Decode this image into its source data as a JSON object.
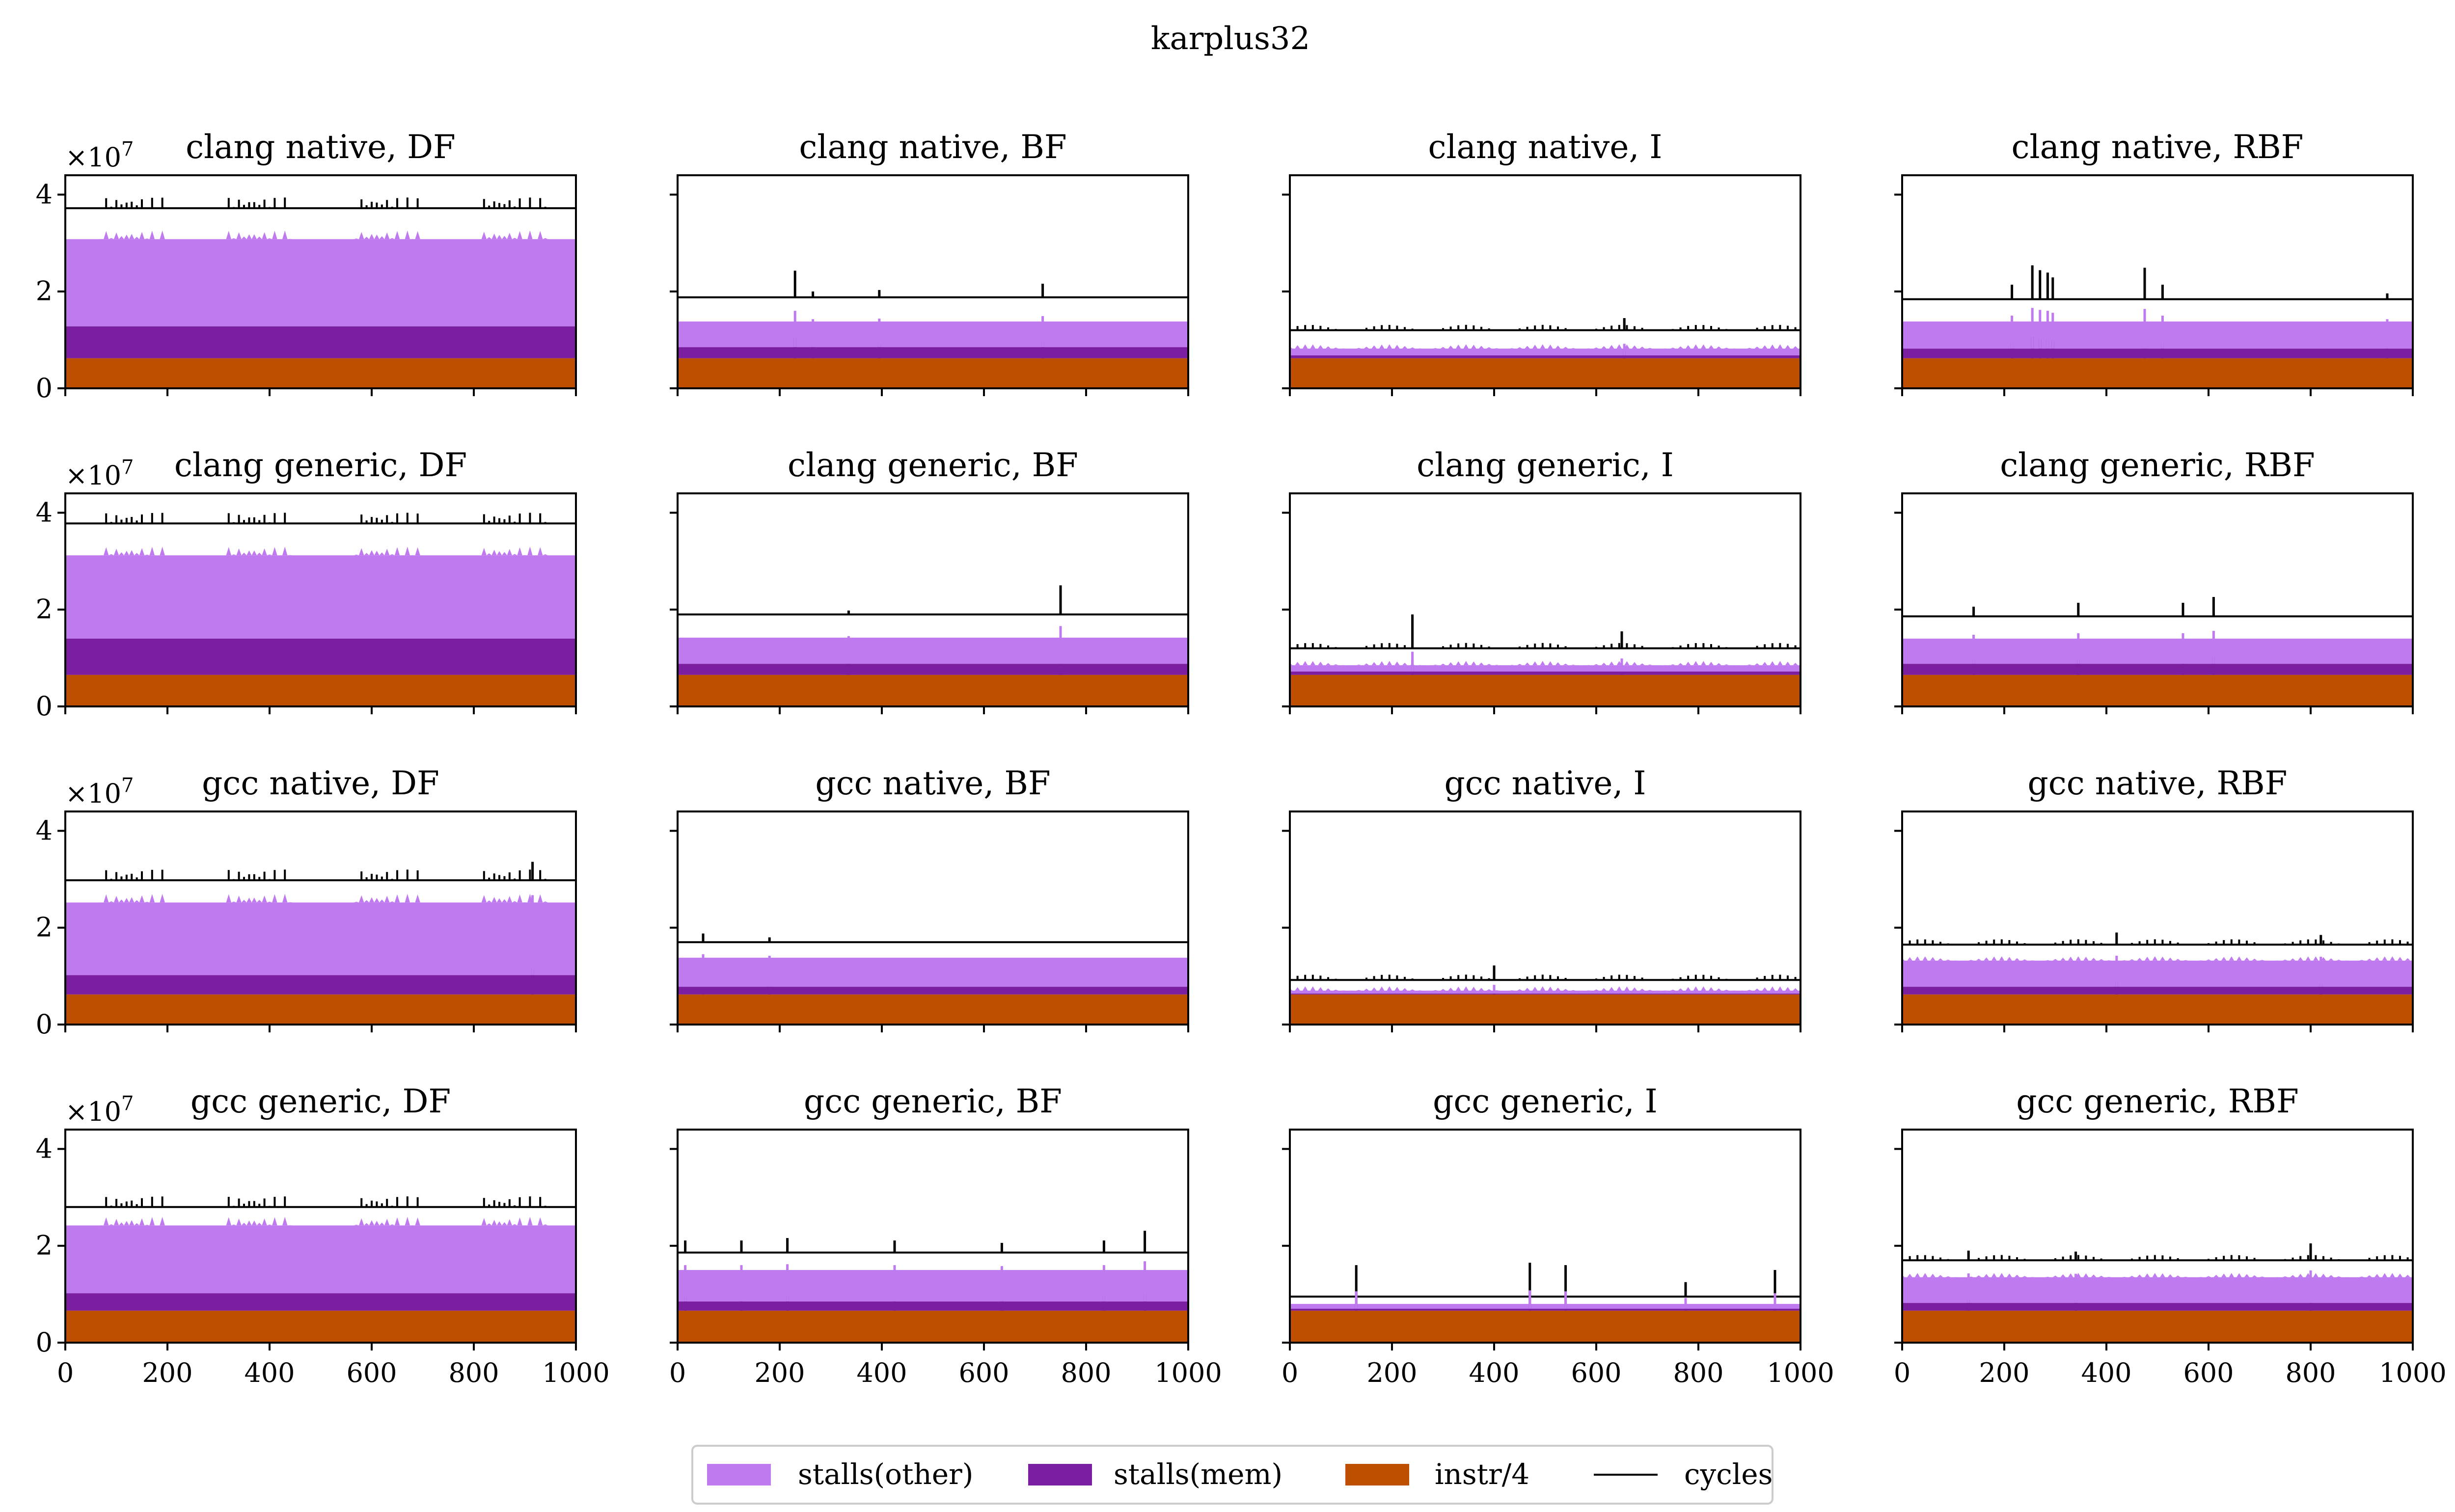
{
  "colors": {
    "stalls_other": "#bf7af0",
    "stalls_mem": "#7b1ea0",
    "instr4": "#bf4f00",
    "cycles": "#000000",
    "frame": "#000000"
  },
  "chart_data": {
    "type": "area",
    "suptitle": "karplus32",
    "x_ticks": [
      "0",
      "200",
      "400",
      "600",
      "800",
      "1000"
    ],
    "y_ticks": [
      "0",
      "2",
      "4"
    ],
    "y_multiplier": "×10",
    "y_exponent": "7",
    "xlim": [
      0,
      1000
    ],
    "ylim": [
      0,
      4.4
    ],
    "y_unit": 10000000,
    "legend": [
      {
        "key": "stalls_other",
        "label": "stalls(other)",
        "kind": "patch"
      },
      {
        "key": "stalls_mem",
        "label": "stalls(mem)",
        "kind": "patch"
      },
      {
        "key": "instr4",
        "label": "instr/4",
        "kind": "patch"
      },
      {
        "key": "cycles",
        "label": "cycles",
        "kind": "line"
      }
    ],
    "panels": [
      {
        "title": "clang native, DF",
        "instr4": 0.62,
        "mem_top": 1.28,
        "other_top": 3.08,
        "cycles": 3.72,
        "spike_mode": "periodic",
        "spikes": []
      },
      {
        "title": "clang native, BF",
        "instr4": 0.62,
        "mem_top": 0.85,
        "other_top": 1.38,
        "cycles": 1.88,
        "spike_mode": "sparse",
        "spikes": [
          {
            "x": 230,
            "h": 0.55
          },
          {
            "x": 265,
            "h": 0.12
          },
          {
            "x": 395,
            "h": 0.15
          },
          {
            "x": 715,
            "h": 0.28
          }
        ]
      },
      {
        "title": "clang native, I",
        "instr4": 0.62,
        "mem_top": 0.68,
        "other_top": 0.82,
        "cycles": 1.2,
        "spike_mode": "dense",
        "spikes": [
          {
            "x": 655,
            "h": 0.25
          }
        ]
      },
      {
        "title": "clang native, RBF",
        "instr4": 0.62,
        "mem_top": 0.82,
        "other_top": 1.38,
        "cycles": 1.84,
        "spike_mode": "sparse",
        "spikes": [
          {
            "x": 255,
            "h": 0.7
          },
          {
            "x": 270,
            "h": 0.6
          },
          {
            "x": 285,
            "h": 0.55
          },
          {
            "x": 295,
            "h": 0.45
          },
          {
            "x": 475,
            "h": 0.65
          },
          {
            "x": 510,
            "h": 0.3
          },
          {
            "x": 215,
            "h": 0.3
          },
          {
            "x": 950,
            "h": 0.12
          }
        ]
      },
      {
        "title": "clang generic, DF",
        "instr4": 0.65,
        "mem_top": 1.4,
        "other_top": 3.12,
        "cycles": 3.78,
        "spike_mode": "periodic",
        "spikes": []
      },
      {
        "title": "clang generic, BF",
        "instr4": 0.65,
        "mem_top": 0.88,
        "other_top": 1.42,
        "cycles": 1.9,
        "spike_mode": "sparse",
        "spikes": [
          {
            "x": 750,
            "h": 0.6
          },
          {
            "x": 335,
            "h": 0.08
          }
        ]
      },
      {
        "title": "clang generic, I",
        "instr4": 0.65,
        "mem_top": 0.72,
        "other_top": 0.85,
        "cycles": 1.2,
        "spike_mode": "dense",
        "spikes": [
          {
            "x": 240,
            "h": 0.7
          },
          {
            "x": 650,
            "h": 0.35
          }
        ]
      },
      {
        "title": "clang generic, RBF",
        "instr4": 0.65,
        "mem_top": 0.88,
        "other_top": 1.4,
        "cycles": 1.86,
        "spike_mode": "sparse",
        "spikes": [
          {
            "x": 140,
            "h": 0.2
          },
          {
            "x": 345,
            "h": 0.28
          },
          {
            "x": 550,
            "h": 0.28
          },
          {
            "x": 610,
            "h": 0.4
          }
        ]
      },
      {
        "title": "gcc native, DF",
        "instr4": 0.62,
        "mem_top": 1.02,
        "other_top": 2.52,
        "cycles": 2.98,
        "spike_mode": "periodic",
        "spikes": [
          {
            "x": 915,
            "h": 0.38
          }
        ]
      },
      {
        "title": "gcc native, BF",
        "instr4": 0.62,
        "mem_top": 0.78,
        "other_top": 1.38,
        "cycles": 1.7,
        "spike_mode": "sparse",
        "spikes": [
          {
            "x": 50,
            "h": 0.18
          },
          {
            "x": 180,
            "h": 0.1
          }
        ]
      },
      {
        "title": "gcc native, I",
        "instr4": 0.62,
        "mem_top": 0.64,
        "other_top": 0.7,
        "cycles": 0.92,
        "spike_mode": "dense",
        "spikes": [
          {
            "x": 400,
            "h": 0.3
          }
        ]
      },
      {
        "title": "gcc native, RBF",
        "instr4": 0.62,
        "mem_top": 0.78,
        "other_top": 1.32,
        "cycles": 1.65,
        "spike_mode": "dense",
        "spikes": [
          {
            "x": 420,
            "h": 0.25
          },
          {
            "x": 820,
            "h": 0.2
          }
        ]
      },
      {
        "title": "gcc generic, DF",
        "instr4": 0.66,
        "mem_top": 1.02,
        "other_top": 2.42,
        "cycles": 2.8,
        "spike_mode": "periodic",
        "spikes": []
      },
      {
        "title": "gcc generic, BF",
        "instr4": 0.66,
        "mem_top": 0.85,
        "other_top": 1.5,
        "cycles": 1.86,
        "spike_mode": "sparse",
        "spikes": [
          {
            "x": 15,
            "h": 0.25
          },
          {
            "x": 125,
            "h": 0.25
          },
          {
            "x": 215,
            "h": 0.3
          },
          {
            "x": 425,
            "h": 0.25
          },
          {
            "x": 635,
            "h": 0.2
          },
          {
            "x": 835,
            "h": 0.25
          },
          {
            "x": 915,
            "h": 0.45
          }
        ]
      },
      {
        "title": "gcc generic, I",
        "instr4": 0.66,
        "mem_top": 0.7,
        "other_top": 0.8,
        "cycles": 0.95,
        "spike_mode": "sparse",
        "spikes": [
          {
            "x": 130,
            "h": 0.65
          },
          {
            "x": 470,
            "h": 0.7
          },
          {
            "x": 540,
            "h": 0.65
          },
          {
            "x": 775,
            "h": 0.3
          },
          {
            "x": 950,
            "h": 0.55
          }
        ]
      },
      {
        "title": "gcc generic, RBF",
        "instr4": 0.66,
        "mem_top": 0.82,
        "other_top": 1.35,
        "cycles": 1.7,
        "spike_mode": "dense",
        "spikes": [
          {
            "x": 800,
            "h": 0.35
          },
          {
            "x": 130,
            "h": 0.2
          },
          {
            "x": 340,
            "h": 0.18
          }
        ]
      }
    ]
  }
}
